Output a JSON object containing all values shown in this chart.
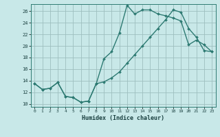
{
  "title": "",
  "xlabel": "Humidex (Indice chaleur)",
  "ylabel": "",
  "bg_color": "#c8e8e8",
  "line_color": "#2d7a72",
  "grid_color": "#9dbfbf",
  "xlim": [
    -0.5,
    23.5
  ],
  "ylim": [
    9.5,
    27.2
  ],
  "xticks": [
    0,
    1,
    2,
    3,
    4,
    5,
    6,
    7,
    8,
    9,
    10,
    11,
    12,
    13,
    14,
    15,
    16,
    17,
    18,
    19,
    20,
    21,
    22,
    23
  ],
  "yticks": [
    10,
    12,
    14,
    16,
    18,
    20,
    22,
    24,
    26
  ],
  "line1_x": [
    0,
    1,
    2,
    3,
    4,
    5,
    6,
    7,
    8,
    9,
    10,
    11,
    12,
    13,
    14,
    15,
    16,
    17,
    18,
    19,
    20,
    21,
    22,
    23
  ],
  "line1_y": [
    13.5,
    12.5,
    12.7,
    13.7,
    11.3,
    11.1,
    10.3,
    10.5,
    13.5,
    17.8,
    19.0,
    22.2,
    27.0,
    25.5,
    26.2,
    26.2,
    25.5,
    25.2,
    24.8,
    24.3,
    20.2,
    21.0,
    20.2,
    19.0
  ],
  "line2_x": [
    0,
    1,
    2,
    3,
    4,
    5,
    6,
    7,
    8,
    9,
    10,
    11,
    12,
    13,
    14,
    15,
    16,
    17,
    18,
    19,
    20,
    21,
    22,
    23
  ],
  "line2_y": [
    13.5,
    12.5,
    12.7,
    13.7,
    11.3,
    11.1,
    10.3,
    10.5,
    13.5,
    13.8,
    14.5,
    15.5,
    17.0,
    18.5,
    20.0,
    21.5,
    23.0,
    24.5,
    26.2,
    25.8,
    23.0,
    21.5,
    19.2,
    19.0
  ]
}
